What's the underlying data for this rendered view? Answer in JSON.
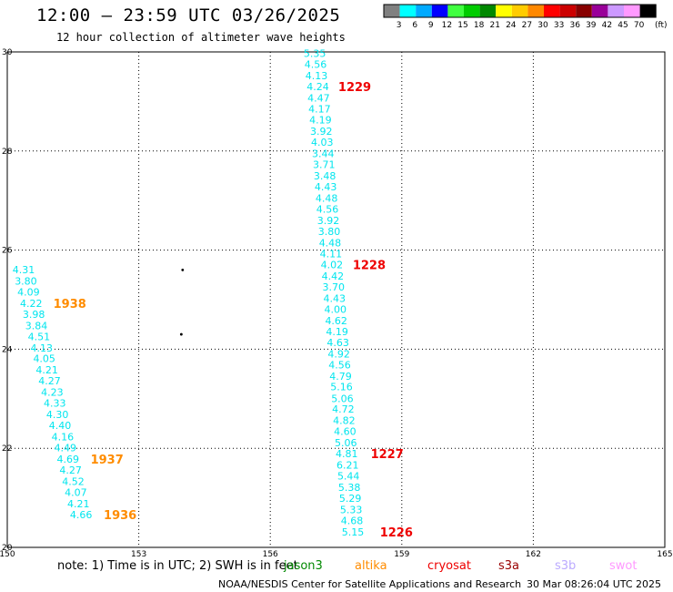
{
  "header": {
    "title": "12:00 — 23:59 UTC 03/26/2025",
    "subtitle": "12 hour collection of altimeter wave heights"
  },
  "color_scale": {
    "unit_label": "(ft)",
    "bins": [
      {
        "label": "3",
        "color": "#808080"
      },
      {
        "label": "6",
        "color": "#00ffff"
      },
      {
        "label": "9",
        "color": "#00aaff"
      },
      {
        "label": "12",
        "color": "#0000ff"
      },
      {
        "label": "15",
        "color": "#40ff40"
      },
      {
        "label": "18",
        "color": "#00cc00"
      },
      {
        "label": "21",
        "color": "#008800"
      },
      {
        "label": "24",
        "color": "#ffff00"
      },
      {
        "label": "27",
        "color": "#ffcc00"
      },
      {
        "label": "30",
        "color": "#ff8800"
      },
      {
        "label": "33",
        "color": "#ff0000"
      },
      {
        "label": "36",
        "color": "#cc0000"
      },
      {
        "label": "39",
        "color": "#880000"
      },
      {
        "label": "42",
        "color": "#990099"
      },
      {
        "label": "45",
        "color": "#cc99ff"
      },
      {
        "label": "70",
        "color": "#ff99ff"
      },
      {
        "label": "",
        "color": "#000000"
      }
    ]
  },
  "map": {
    "lon_ticks": [
      "150",
      "153",
      "156",
      "159",
      "162",
      "165"
    ],
    "lat_ticks": [
      "20",
      "22",
      "24",
      "26",
      "28",
      "30"
    ],
    "lon_range": [
      150,
      165
    ],
    "lat_range": [
      20,
      30
    ]
  },
  "tracks": [
    {
      "color": "#00e5ee",
      "points": [
        {
          "lat": 29.97,
          "lon": 156.76,
          "v": "5.35"
        },
        {
          "lat": 29.75,
          "lon": 156.78,
          "v": "4.56"
        },
        {
          "lat": 29.52,
          "lon": 156.8,
          "v": "4.13"
        },
        {
          "lat": 29.3,
          "lon": 156.83,
          "v": "4.24"
        },
        {
          "lat": 29.07,
          "lon": 156.85,
          "v": "4.47"
        },
        {
          "lat": 28.85,
          "lon": 156.87,
          "v": "4.17"
        },
        {
          "lat": 28.63,
          "lon": 156.89,
          "v": "4.19"
        },
        {
          "lat": 28.4,
          "lon": 156.91,
          "v": "3.92"
        },
        {
          "lat": 28.18,
          "lon": 156.93,
          "v": "4.03"
        },
        {
          "lat": 27.95,
          "lon": 156.95,
          "v": "3.44"
        },
        {
          "lat": 27.73,
          "lon": 156.97,
          "v": "3.71"
        },
        {
          "lat": 27.5,
          "lon": 156.99,
          "v": "3.48"
        },
        {
          "lat": 27.28,
          "lon": 157.01,
          "v": "4.43"
        },
        {
          "lat": 27.05,
          "lon": 157.03,
          "v": "4.48"
        },
        {
          "lat": 26.83,
          "lon": 157.05,
          "v": "4.56"
        },
        {
          "lat": 26.6,
          "lon": 157.07,
          "v": "3.92"
        },
        {
          "lat": 26.38,
          "lon": 157.09,
          "v": "3.80"
        },
        {
          "lat": 26.15,
          "lon": 157.11,
          "v": "4.48"
        },
        {
          "lat": 25.93,
          "lon": 157.13,
          "v": "4.11"
        },
        {
          "lat": 25.71,
          "lon": 157.15,
          "v": "4.02"
        },
        {
          "lat": 25.48,
          "lon": 157.17,
          "v": "4.42"
        },
        {
          "lat": 25.26,
          "lon": 157.19,
          "v": "3.70"
        },
        {
          "lat": 25.03,
          "lon": 157.21,
          "v": "4.43"
        },
        {
          "lat": 24.81,
          "lon": 157.23,
          "v": "4.00"
        },
        {
          "lat": 24.58,
          "lon": 157.25,
          "v": "4.62"
        },
        {
          "lat": 24.36,
          "lon": 157.27,
          "v": "4.19"
        },
        {
          "lat": 24.14,
          "lon": 157.29,
          "v": "4.63"
        },
        {
          "lat": 23.91,
          "lon": 157.31,
          "v": "4.92"
        },
        {
          "lat": 23.69,
          "lon": 157.33,
          "v": "4.56"
        },
        {
          "lat": 23.46,
          "lon": 157.35,
          "v": "4.79"
        },
        {
          "lat": 23.24,
          "lon": 157.37,
          "v": "5.16"
        },
        {
          "lat": 23.01,
          "lon": 157.39,
          "v": "5.06"
        },
        {
          "lat": 22.79,
          "lon": 157.41,
          "v": "4.72"
        },
        {
          "lat": 22.56,
          "lon": 157.43,
          "v": "4.82"
        },
        {
          "lat": 22.34,
          "lon": 157.45,
          "v": "4.60"
        },
        {
          "lat": 22.11,
          "lon": 157.47,
          "v": "5.06"
        },
        {
          "lat": 21.89,
          "lon": 157.49,
          "v": "4.81"
        },
        {
          "lat": 21.66,
          "lon": 157.51,
          "v": "6.21"
        },
        {
          "lat": 21.44,
          "lon": 157.53,
          "v": "5.44"
        },
        {
          "lat": 21.21,
          "lon": 157.55,
          "v": "5.38"
        },
        {
          "lat": 20.99,
          "lon": 157.57,
          "v": "5.29"
        },
        {
          "lat": 20.76,
          "lon": 157.59,
          "v": "5.33"
        },
        {
          "lat": 20.54,
          "lon": 157.61,
          "v": "4.68"
        },
        {
          "lat": 20.31,
          "lon": 157.63,
          "v": "5.15"
        }
      ]
    },
    {
      "color": "#00e5ee",
      "points": [
        {
          "lat": 25.61,
          "lon": 150.12,
          "v": "4.31"
        },
        {
          "lat": 25.38,
          "lon": 150.17,
          "v": "3.80"
        },
        {
          "lat": 25.16,
          "lon": 150.23,
          "v": "4.09"
        },
        {
          "lat": 24.93,
          "lon": 150.29,
          "v": "4.22"
        },
        {
          "lat": 24.71,
          "lon": 150.35,
          "v": "3.98"
        },
        {
          "lat": 24.48,
          "lon": 150.41,
          "v": "3.84"
        },
        {
          "lat": 24.26,
          "lon": 150.47,
          "v": "4.51"
        },
        {
          "lat": 24.03,
          "lon": 150.53,
          "v": "4.13"
        },
        {
          "lat": 23.81,
          "lon": 150.59,
          "v": "4.05"
        },
        {
          "lat": 23.58,
          "lon": 150.65,
          "v": "4.21"
        },
        {
          "lat": 23.36,
          "lon": 150.71,
          "v": "4.27"
        },
        {
          "lat": 23.13,
          "lon": 150.77,
          "v": "4.23"
        },
        {
          "lat": 22.91,
          "lon": 150.83,
          "v": "4.33"
        },
        {
          "lat": 22.68,
          "lon": 150.89,
          "v": "4.30"
        },
        {
          "lat": 22.46,
          "lon": 150.95,
          "v": "4.40"
        },
        {
          "lat": 22.23,
          "lon": 151.01,
          "v": "4.16"
        },
        {
          "lat": 22.01,
          "lon": 151.07,
          "v": "4.49"
        },
        {
          "lat": 21.78,
          "lon": 151.13,
          "v": "4.69"
        },
        {
          "lat": 21.56,
          "lon": 151.19,
          "v": "4.27"
        },
        {
          "lat": 21.33,
          "lon": 151.25,
          "v": "4.52"
        },
        {
          "lat": 21.11,
          "lon": 151.31,
          "v": "4.07"
        },
        {
          "lat": 20.88,
          "lon": 151.37,
          "v": "4.21"
        },
        {
          "lat": 20.66,
          "lon": 151.43,
          "v": "4.66"
        }
      ]
    }
  ],
  "time_labels": [
    {
      "text": "1229",
      "lat": 29.3,
      "lon": 157.55,
      "color": "#ee0000"
    },
    {
      "text": "1228",
      "lat": 25.71,
      "lon": 157.88,
      "color": "#ee0000"
    },
    {
      "text": "1227",
      "lat": 21.89,
      "lon": 158.29,
      "color": "#ee0000"
    },
    {
      "text": "1226",
      "lat": 20.31,
      "lon": 158.5,
      "color": "#ee0000"
    },
    {
      "text": "1938",
      "lat": 24.93,
      "lon": 151.05,
      "color": "#ff8c00"
    },
    {
      "text": "1937",
      "lat": 21.78,
      "lon": 151.9,
      "color": "#ff8c00"
    },
    {
      "text": "1936",
      "lat": 20.66,
      "lon": 152.2,
      "color": "#ff8c00"
    }
  ],
  "dots": [
    {
      "lat": 25.6,
      "lon": 154.0
    },
    {
      "lat": 24.3,
      "lon": 153.97
    }
  ],
  "footer": {
    "note": "note:  1) Time is in UTC; 2) SWH is in feet",
    "satellites": [
      {
        "name": "jason3",
        "color": "#008800"
      },
      {
        "name": "altika",
        "color": "#ff8c00"
      },
      {
        "name": "cryosat",
        "color": "#ee0000"
      },
      {
        "name": "s3a",
        "color": "#990000"
      },
      {
        "name": "s3b",
        "color": "#bbaaff"
      },
      {
        "name": "swot",
        "color": "#ff99ff"
      }
    ],
    "credit": "NOAA/NESDIS Center for Satellite Applications and Research",
    "timestamp": "30 Mar 08:26:04 UTC 2025"
  }
}
